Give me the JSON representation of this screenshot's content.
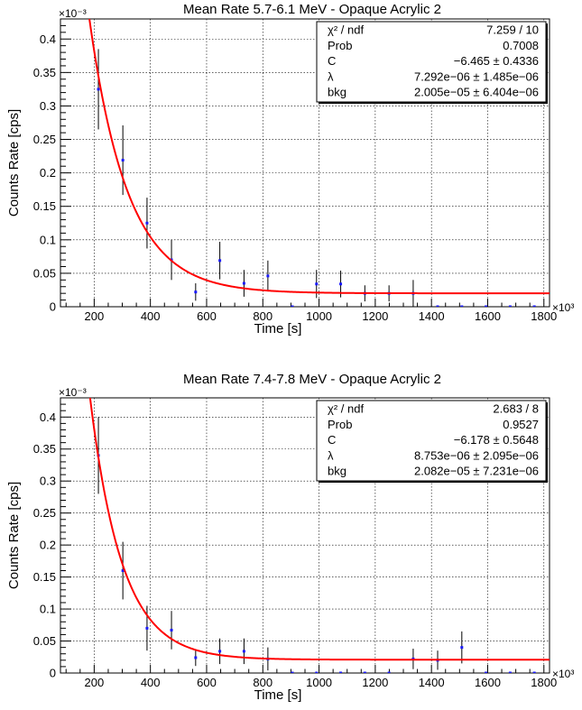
{
  "chart_data": [
    {
      "type": "scatter",
      "title": "Mean Rate 5.7-6.1 MeV - Opaque Acrylic 2",
      "xlabel": "Time [s]",
      "ylabel": "Counts Rate [cps]",
      "x_exponent_label": "×10³",
      "y_exponent_label": "×10⁻³",
      "xlim": [
        80,
        1820
      ],
      "ylim": [
        0,
        0.43
      ],
      "x_ticks": [
        200,
        400,
        600,
        800,
        1000,
        1200,
        1400,
        1600,
        1800
      ],
      "x_tick_labels": [
        "200",
        "400",
        "600",
        "800",
        "1000",
        "1200",
        "1400",
        "1600",
        "1800"
      ],
      "y_ticks": [
        0,
        0.05,
        0.1,
        0.15,
        0.2,
        0.25,
        0.3,
        0.35,
        0.4
      ],
      "y_tick_labels": [
        "0",
        "0.05",
        "0.1",
        "0.15",
        "0.2",
        "0.25",
        "0.3",
        "0.35",
        "0.4"
      ],
      "grid": true,
      "series": [
        {
          "x": [
            215,
            302,
            388,
            475,
            561,
            647,
            733,
            818,
            905,
            991,
            1077,
            1163,
            1249,
            1335,
            1422,
            1508,
            1594,
            1680,
            1766
          ],
          "y": [
            0.325,
            0.219,
            0.125,
            0.07,
            0.022,
            0.069,
            0.035,
            0.046,
            0,
            0.034,
            0.034,
            0.02,
            0.02,
            0.02,
            0,
            0,
            0,
            0,
            0
          ],
          "err": [
            0.06,
            0.052,
            0.038,
            0.03,
            0.013,
            0.028,
            0.02,
            0.023,
            0,
            0.021,
            0.02,
            0.012,
            0.012,
            0.02,
            0,
            0,
            0,
            0,
            0
          ],
          "color": "#1a1aff"
        }
      ],
      "fit": {
        "C": -6.465,
        "lambda": 0.007292,
        "bkg": 0.02005,
        "color": "#ff0000"
      },
      "stats_box": {
        "position": "top-right",
        "rows": [
          [
            "χ² / ndf",
            "7.259 / 10"
          ],
          [
            "Prob",
            "0.7008"
          ],
          [
            "C",
            "−6.465 ± 0.4336"
          ],
          [
            "λ",
            "7.292e−06 ± 1.485e−06"
          ],
          [
            "bkg",
            "2.005e−05 ± 6.404e−06"
          ]
        ]
      }
    },
    {
      "type": "scatter",
      "title": "Mean Rate 7.4-7.8 MeV - Opaque Acrylic 2",
      "xlabel": "Time [s]",
      "ylabel": "Counts Rate [cps]",
      "x_exponent_label": "×10³",
      "y_exponent_label": "×10⁻³",
      "xlim": [
        80,
        1820
      ],
      "ylim": [
        0,
        0.43
      ],
      "x_ticks": [
        200,
        400,
        600,
        800,
        1000,
        1200,
        1400,
        1600,
        1800
      ],
      "x_tick_labels": [
        "200",
        "400",
        "600",
        "800",
        "1000",
        "1200",
        "1400",
        "1600",
        "1800"
      ],
      "y_ticks": [
        0,
        0.05,
        0.1,
        0.15,
        0.2,
        0.25,
        0.3,
        0.35,
        0.4
      ],
      "y_tick_labels": [
        "0",
        "0.05",
        "0.1",
        "0.15",
        "0.2",
        "0.25",
        "0.3",
        "0.35",
        "0.4"
      ],
      "grid": true,
      "series": [
        {
          "x": [
            215,
            302,
            388,
            475,
            561,
            647,
            733,
            818,
            905,
            991,
            1077,
            1163,
            1249,
            1335,
            1422,
            1508,
            1594,
            1680,
            1766
          ],
          "y": [
            0.34,
            0.16,
            0.07,
            0.067,
            0.024,
            0.034,
            0.034,
            0.022,
            0,
            0,
            0,
            0,
            0,
            0.022,
            0.02,
            0.04,
            0,
            0,
            0
          ],
          "err": [
            0.06,
            0.045,
            0.035,
            0.03,
            0.013,
            0.02,
            0.02,
            0.018,
            0,
            0,
            0,
            0,
            0,
            0.016,
            0.015,
            0.025,
            0,
            0,
            0
          ],
          "color": "#1a1aff"
        }
      ],
      "fit": {
        "C": -6.178,
        "lambda": 0.008753,
        "bkg": 0.02082,
        "color": "#ff0000"
      },
      "stats_box": {
        "position": "top-right",
        "rows": [
          [
            "χ² / ndf",
            "2.683 / 8"
          ],
          [
            "Prob",
            "0.9527"
          ],
          [
            "C",
            "−6.178 ± 0.5648"
          ],
          [
            "λ",
            "8.753e−06 ± 2.095e−06"
          ],
          [
            "bkg",
            "2.082e−05 ± 7.231e−06"
          ]
        ]
      }
    }
  ]
}
